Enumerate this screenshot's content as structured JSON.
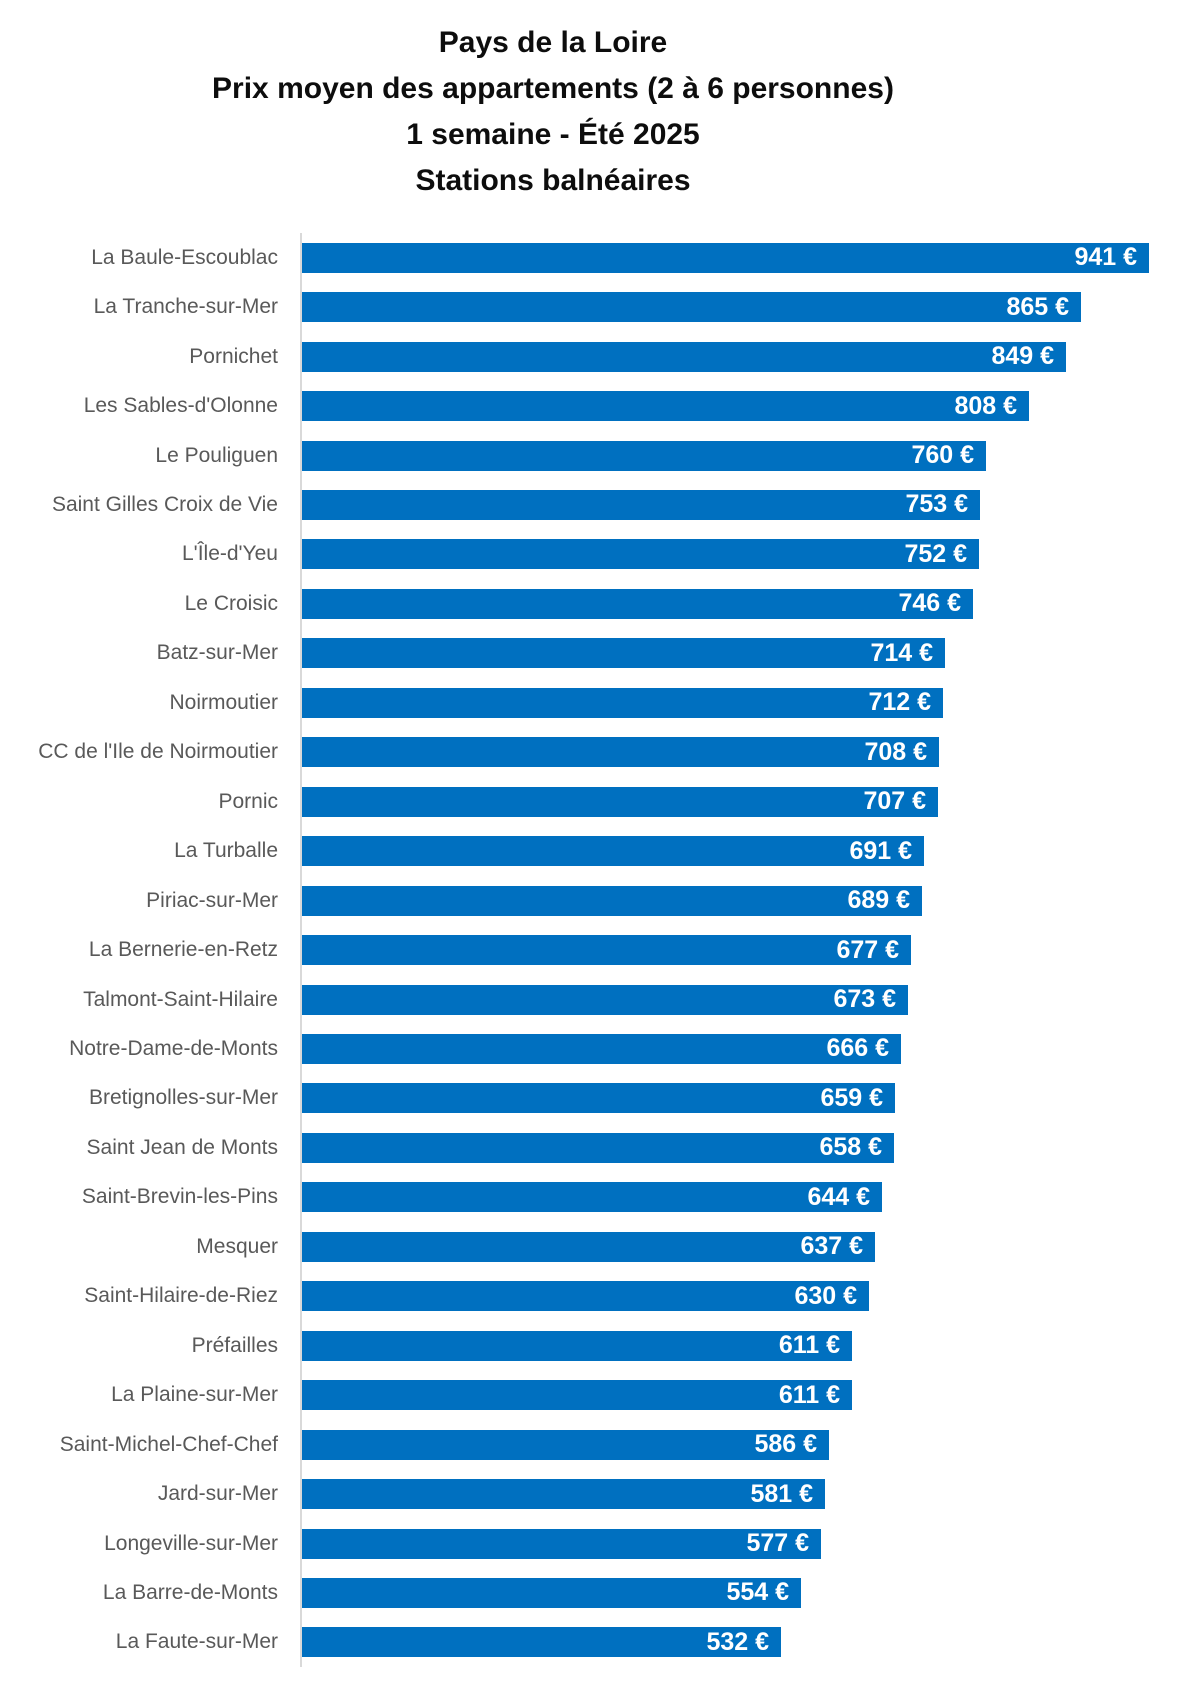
{
  "title": {
    "lines": [
      "Pays de la Loire",
      "Prix moyen des appartements (2 à 6 personnes)",
      "1 semaine - Été 2025",
      "Stations balnéaires"
    ]
  },
  "chart_data": {
    "type": "bar",
    "orientation": "horizontal",
    "title": "Pays de la Loire - Prix moyen des appartements (2 à 6 personnes) - 1 semaine - Été 2025 - Stations balnéaires",
    "xlabel": "",
    "ylabel": "",
    "unit": "€",
    "value_suffix": " €",
    "xlim": [
      0,
      1000
    ],
    "grid": false,
    "legend": false,
    "value_labels": "inside-end",
    "categories": [
      "La Baule-Escoublac",
      "La Tranche-sur-Mer",
      "Pornichet",
      "Les Sables-d'Olonne",
      "Le Pouliguen",
      "Saint Gilles Croix de Vie",
      "L'Île-d'Yeu",
      "Le Croisic",
      "Batz-sur-Mer",
      "Noirmoutier",
      "CC de l'Ile de Noirmoutier",
      "Pornic",
      "La Turballe",
      "Piriac-sur-Mer",
      "La Bernerie-en-Retz",
      "Talmont-Saint-Hilaire",
      "Notre-Dame-de-Monts",
      "Bretignolles-sur-Mer",
      "Saint Jean de Monts",
      "Saint-Brevin-les-Pins",
      "Mesquer",
      "Saint-Hilaire-de-Riez",
      "Préfailles",
      "La Plaine-sur-Mer",
      "Saint-Michel-Chef-Chef",
      "Jard-sur-Mer",
      "Longeville-sur-Mer",
      "La Barre-de-Monts",
      "La Faute-sur-Mer"
    ],
    "values": [
      941,
      865,
      849,
      808,
      760,
      753,
      752,
      746,
      714,
      712,
      708,
      707,
      691,
      689,
      677,
      673,
      666,
      659,
      658,
      644,
      637,
      630,
      611,
      611,
      586,
      581,
      577,
      554,
      532
    ]
  },
  "colors": {
    "bar": "#0070c0",
    "value_label": "#ffffff",
    "category_label": "#595959",
    "axis_line": "#d9d9d9",
    "title_text": "#0d0d0d",
    "background": "#ffffff"
  }
}
